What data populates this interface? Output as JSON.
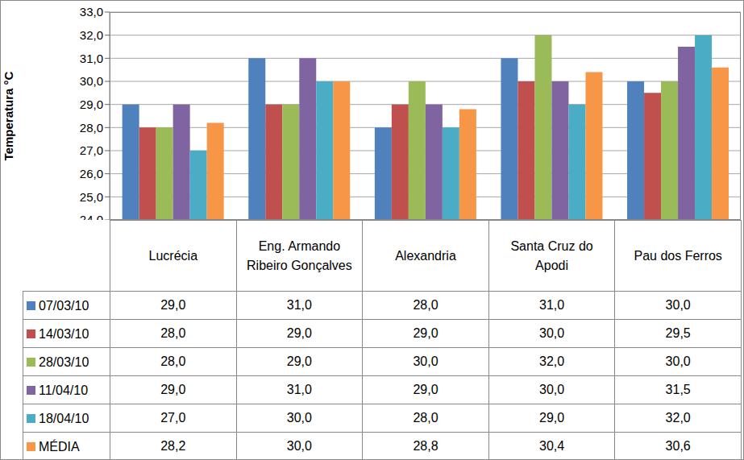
{
  "chart_data": {
    "type": "bar",
    "ylabel": "Temperatura °C",
    "categories": [
      "Lucrécia",
      "Eng. Armando Ribeiro Gonçalves",
      "Alexandria",
      "Santa Cruz do Apodi",
      "Pau dos Ferros"
    ],
    "series": [
      {
        "name": "07/03/10",
        "color": "#4f81bd",
        "values": [
          29,
          31,
          28,
          31,
          30
        ],
        "value_labels": [
          "29,0",
          "31,0",
          "28,0",
          "31,0",
          "30,0"
        ]
      },
      {
        "name": "14/03/10",
        "color": "#c0504d",
        "values": [
          28,
          29,
          29,
          30,
          29.5
        ],
        "value_labels": [
          "28,0",
          "29,0",
          "29,0",
          "30,0",
          "29,5"
        ]
      },
      {
        "name": "28/03/10",
        "color": "#9bbb59",
        "values": [
          28,
          29,
          30,
          32,
          30
        ],
        "value_labels": [
          "28,0",
          "29,0",
          "30,0",
          "32,0",
          "30,0"
        ]
      },
      {
        "name": "11/04/10",
        "color": "#8064a2",
        "values": [
          29,
          31,
          29,
          30,
          31.5
        ],
        "value_labels": [
          "29,0",
          "31,0",
          "29,0",
          "30,0",
          "31,5"
        ]
      },
      {
        "name": "18/04/10",
        "color": "#4bacc6",
        "values": [
          27,
          30,
          28,
          29,
          32
        ],
        "value_labels": [
          "27,0",
          "30,0",
          "28,0",
          "29,0",
          "32,0"
        ]
      },
      {
        "name": "MÉDIA",
        "color": "#f79646",
        "values": [
          28.2,
          30,
          28.8,
          30.4,
          30.6
        ],
        "value_labels": [
          "28,2",
          "30,0",
          "28,8",
          "30,4",
          "30,6"
        ]
      }
    ],
    "ylim": [
      24,
      33
    ],
    "yticks": [
      {
        "value": 24,
        "label": "24,0"
      },
      {
        "value": 25,
        "label": "25,0"
      },
      {
        "value": 26,
        "label": "26,0"
      },
      {
        "value": 27,
        "label": "27,0"
      },
      {
        "value": 28,
        "label": "28,0"
      },
      {
        "value": 29,
        "label": "29,0"
      },
      {
        "value": 30,
        "label": "30,0"
      },
      {
        "value": 31,
        "label": "31,0"
      },
      {
        "value": 32,
        "label": "32,0"
      },
      {
        "value": 33,
        "label": "33,0"
      }
    ],
    "grid": true
  }
}
